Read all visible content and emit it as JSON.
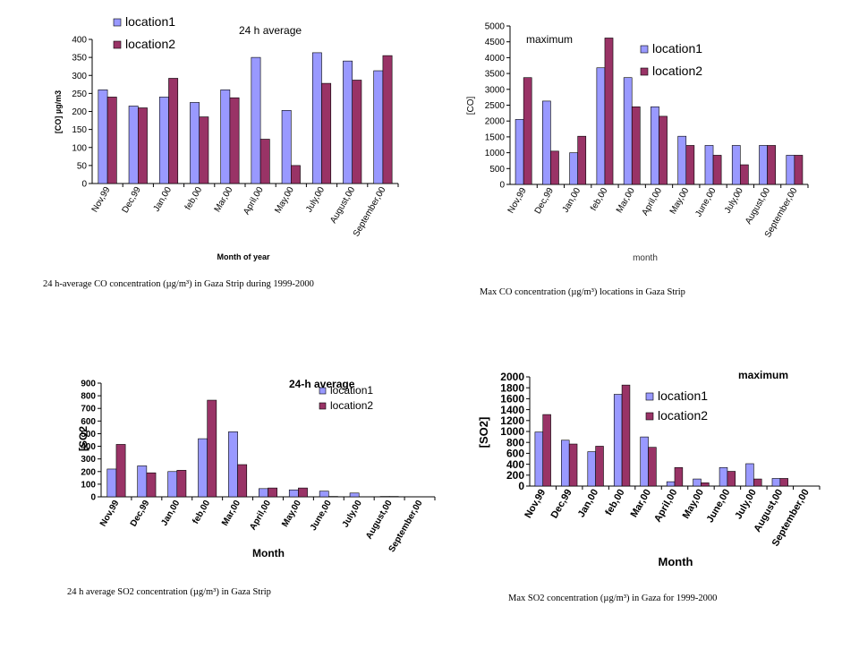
{
  "colors": {
    "location1": "#9999ff",
    "location2": "#993366",
    "axis": "#000000",
    "text": "#000000"
  },
  "captions": [
    "24 h-average CO concentration (µg/m³) in Gaza Strip during 1999-2000",
    "Max CO concentration (µg/m³) locations in Gaza Strip",
    "24 h average SO2 concentration (µg/m³) in Gaza Strip",
    "Max SO2 concentration (µg/m³) in Gaza for 1999-2000"
  ],
  "chart_data": [
    {
      "type": "bar",
      "title": "24 h average",
      "xlabel": "Month of year",
      "ylabel": "[CO] µg/m3",
      "ylim": [
        0,
        400
      ],
      "yticks": [
        "0",
        "50",
        "100",
        "150",
        "200",
        "250",
        "300",
        "350",
        "400"
      ],
      "categories": [
        "Nov,99",
        "Dec,99",
        "Jan,00",
        "feb,00",
        "Mar,00",
        "April,00",
        "May,00",
        "July,00",
        "August,00",
        "September,00"
      ],
      "series": [
        {
          "name": "location1",
          "values": [
            260,
            215,
            240,
            225,
            260,
            350,
            203,
            363,
            340,
            313
          ]
        },
        {
          "name": "location2",
          "values": [
            240,
            210,
            292,
            185,
            238,
            123,
            50,
            278,
            287,
            355
          ]
        }
      ],
      "legend": "top-left"
    },
    {
      "type": "bar",
      "title": "maximum",
      "xlabel": "month",
      "ylabel": "[CO]",
      "ylim": [
        0,
        5000
      ],
      "yticks": [
        "0",
        "500",
        "1000",
        "1500",
        "2000",
        "2500",
        "3000",
        "3500",
        "4000",
        "4500",
        "5000"
      ],
      "categories": [
        "Nov,99",
        "Dec,99",
        "Jan,00",
        "feb,00",
        "Mar,00",
        "April,00",
        "May,00",
        "June,00",
        "July,00",
        "August,00",
        "September,00"
      ],
      "series": [
        {
          "name": "location1",
          "values": [
            2050,
            2630,
            1000,
            3680,
            3370,
            2450,
            1520,
            1230,
            1230,
            1230,
            920
          ]
        },
        {
          "name": "location2",
          "values": [
            3370,
            1050,
            1520,
            4620,
            2450,
            2150,
            1230,
            920,
            620,
            1230,
            920
          ]
        }
      ],
      "legend": "top-right"
    },
    {
      "type": "bar",
      "title": "24-h average",
      "xlabel": "Month",
      "ylabel": "[SO2",
      "ylim": [
        0,
        900
      ],
      "yticks": [
        "0",
        "100",
        "200",
        "300",
        "400",
        "500",
        "600",
        "700",
        "800",
        "900"
      ],
      "categories": [
        "Nov,99",
        "Dec,99",
        "Jan,00",
        "feb,00",
        "Mar,00",
        "April,00",
        "May,00",
        "June,00",
        "July,00",
        "August,00",
        "September,00"
      ],
      "series": [
        {
          "name": "location1",
          "values": [
            220,
            245,
            200,
            460,
            515,
            65,
            55,
            45,
            30,
            3,
            0
          ]
        },
        {
          "name": "location2",
          "values": [
            415,
            190,
            210,
            765,
            255,
            70,
            70,
            3,
            0,
            3,
            0
          ]
        }
      ],
      "legend": "top-right"
    },
    {
      "type": "bar",
      "title": "maximum",
      "xlabel": "Month",
      "ylabel": "[SO2]",
      "ylim": [
        0,
        2000
      ],
      "yticks": [
        "0",
        "200",
        "400",
        "600",
        "800",
        "1000",
        "1200",
        "1400",
        "1600",
        "1800",
        "2000"
      ],
      "categories": [
        "Nov,99",
        "Dec,99",
        "Jan,00",
        "feb,00",
        "Mar,00",
        "April,00",
        "May,00",
        "June,00",
        "July,00",
        "August,00",
        "September,00"
      ],
      "series": [
        {
          "name": "location1",
          "values": [
            990,
            840,
            630,
            1680,
            900,
            80,
            130,
            340,
            410,
            140,
            0
          ]
        },
        {
          "name": "location2",
          "values": [
            1310,
            770,
            730,
            1850,
            710,
            340,
            60,
            270,
            130,
            140,
            0
          ]
        }
      ],
      "legend": "top-left"
    }
  ]
}
